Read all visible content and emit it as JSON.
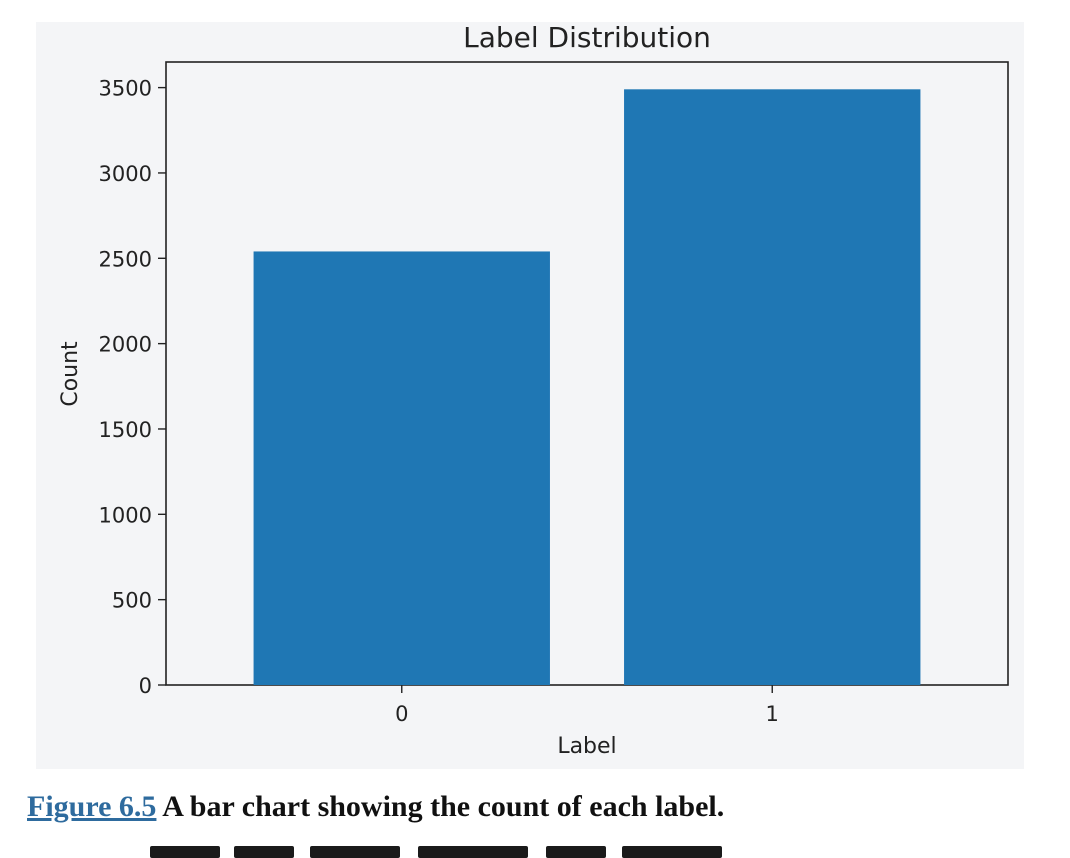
{
  "chart_data": {
    "type": "bar",
    "title": "Label Distribution",
    "xlabel": "Label",
    "ylabel": "Count",
    "categories": [
      "0",
      "1"
    ],
    "values": [
      2540,
      3490
    ],
    "ylim": [
      0,
      3650
    ],
    "yticks": [
      0,
      500,
      1000,
      1500,
      2000,
      2500,
      3000,
      3500
    ],
    "bar_color": "#1f77b4",
    "grid": false,
    "legend": "none"
  },
  "caption": {
    "figure_ref": "Figure 6.5",
    "text": "A bar chart showing the count of each label."
  },
  "colors": {
    "panel_background": "#f4f5f7",
    "link": "#2e6b9e",
    "text": "#111111"
  }
}
